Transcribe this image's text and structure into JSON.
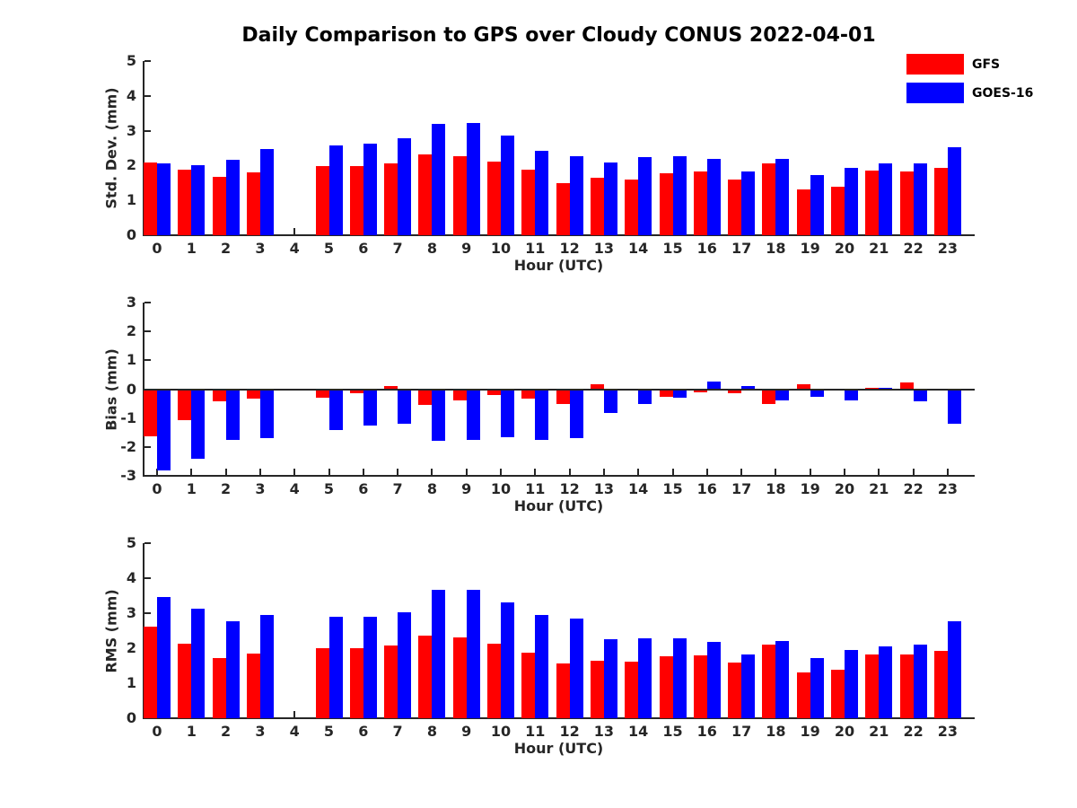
{
  "figure": {
    "title": "Daily Comparison to GPS over Cloudy CONUS 2022-04-01",
    "background": "#ffffff",
    "axis_color": "#262626"
  },
  "legend": {
    "position": "top-right",
    "items": [
      {
        "label": "GFS",
        "color": "#ff0000"
      },
      {
        "label": "GOES-16",
        "color": "#0000ff"
      }
    ]
  },
  "chart_data": [
    {
      "type": "bar",
      "ylabel": "Std. Dev. (mm)",
      "xlabel": "Hour (UTC)",
      "x": [
        0,
        1,
        2,
        3,
        4,
        5,
        6,
        7,
        8,
        9,
        10,
        11,
        12,
        13,
        14,
        15,
        16,
        17,
        18,
        19,
        20,
        21,
        22,
        23
      ],
      "ylim": [
        0,
        5
      ],
      "yticks": [
        0,
        1,
        2,
        3,
        4,
        5
      ],
      "grid": false,
      "series": [
        {
          "name": "GFS",
          "color": "#ff0000",
          "values": [
            2.1,
            1.87,
            1.68,
            1.8,
            null,
            1.98,
            1.98,
            2.07,
            2.32,
            2.27,
            2.12,
            1.87,
            1.5,
            1.65,
            1.6,
            1.77,
            1.83,
            1.6,
            2.05,
            1.31,
            1.39,
            1.85,
            1.83,
            1.93
          ]
        },
        {
          "name": "GOES-16",
          "color": "#0000ff",
          "values": [
            2.06,
            2.02,
            2.16,
            2.47,
            null,
            2.58,
            2.63,
            2.79,
            3.2,
            3.23,
            2.87,
            2.41,
            2.28,
            2.1,
            2.25,
            2.27,
            2.18,
            1.84,
            2.19,
            1.72,
            1.93,
            2.05,
            2.07,
            2.52
          ]
        }
      ]
    },
    {
      "type": "bar",
      "ylabel": "Bias (mm)",
      "xlabel": "Hour (UTC)",
      "x": [
        0,
        1,
        2,
        3,
        4,
        5,
        6,
        7,
        8,
        9,
        10,
        11,
        12,
        13,
        14,
        15,
        16,
        17,
        18,
        19,
        20,
        21,
        22,
        23
      ],
      "ylim": [
        -3,
        3
      ],
      "yticks": [
        -3,
        -2,
        -1,
        0,
        1,
        2,
        3
      ],
      "grid": false,
      "series": [
        {
          "name": "GFS",
          "color": "#ff0000",
          "values": [
            -1.62,
            -1.08,
            -0.42,
            -0.33,
            null,
            -0.3,
            -0.13,
            0.1,
            -0.54,
            -0.4,
            -0.19,
            -0.32,
            -0.5,
            0.17,
            -0.05,
            -0.27,
            -0.1,
            -0.13,
            -0.5,
            0.16,
            -0.05,
            0.05,
            0.22,
            -0.04
          ]
        },
        {
          "name": "GOES-16",
          "color": "#0000ff",
          "values": [
            -2.82,
            -2.42,
            -1.77,
            -1.7,
            null,
            -1.4,
            -1.26,
            -1.2,
            -1.78,
            -1.75,
            -1.67,
            -1.75,
            -1.7,
            -0.82,
            -0.52,
            -0.31,
            0.26,
            0.1,
            -0.38,
            -0.27,
            -0.38,
            0.05,
            -0.42,
            -1.2
          ]
        }
      ]
    },
    {
      "type": "bar",
      "ylabel": "RMS (mm)",
      "xlabel": "Hour (UTC)",
      "x": [
        0,
        1,
        2,
        3,
        4,
        5,
        6,
        7,
        8,
        9,
        10,
        11,
        12,
        13,
        14,
        15,
        16,
        17,
        18,
        19,
        20,
        21,
        22,
        23
      ],
      "ylim": [
        0,
        5
      ],
      "yticks": [
        0,
        1,
        2,
        3,
        4,
        5
      ],
      "grid": false,
      "series": [
        {
          "name": "GFS",
          "color": "#ff0000",
          "values": [
            2.62,
            2.14,
            1.72,
            1.84,
            null,
            2.0,
            2.0,
            2.07,
            2.37,
            2.31,
            2.13,
            1.88,
            1.56,
            1.65,
            1.62,
            1.76,
            1.79,
            1.6,
            2.11,
            1.3,
            1.39,
            1.82,
            1.82,
            1.92
          ]
        },
        {
          "name": "GOES-16",
          "color": "#0000ff",
          "values": [
            3.45,
            3.12,
            2.76,
            2.96,
            null,
            2.91,
            2.89,
            3.02,
            3.67,
            3.67,
            3.3,
            2.94,
            2.84,
            2.26,
            2.28,
            2.27,
            2.17,
            1.82,
            2.2,
            1.71,
            1.95,
            2.05,
            2.1,
            2.77
          ]
        }
      ]
    }
  ]
}
